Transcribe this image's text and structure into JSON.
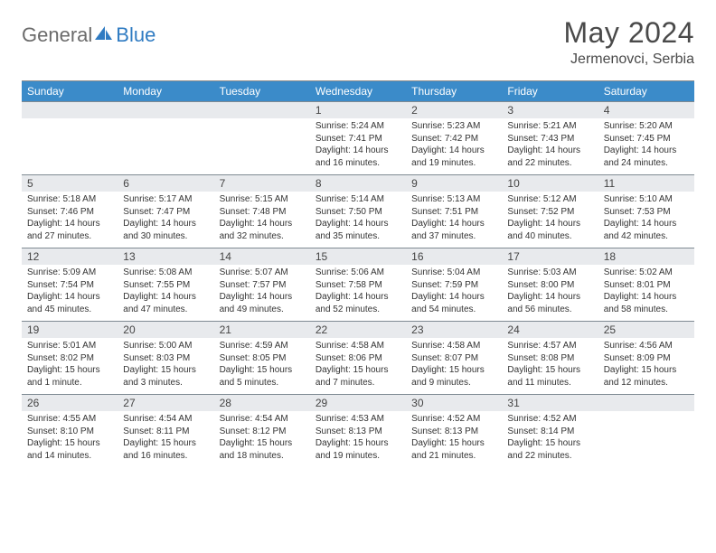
{
  "brand": {
    "part1": "General",
    "part2": "Blue"
  },
  "title": {
    "month": "May 2024",
    "location": "Jermenovci, Serbia"
  },
  "colors": {
    "header_bg": "#3b8bc9",
    "header_text": "#ffffff",
    "daynum_bg": "#e8eaed",
    "rule": "#7f8a93",
    "body_text": "#333333",
    "brand_gray": "#6b6b6b",
    "brand_blue": "#2f7bc2"
  },
  "dow": [
    "Sunday",
    "Monday",
    "Tuesday",
    "Wednesday",
    "Thursday",
    "Friday",
    "Saturday"
  ],
  "weeks": [
    [
      {
        "n": "",
        "lines": [
          "",
          "",
          "",
          ""
        ]
      },
      {
        "n": "",
        "lines": [
          "",
          "",
          "",
          ""
        ]
      },
      {
        "n": "",
        "lines": [
          "",
          "",
          "",
          ""
        ]
      },
      {
        "n": "1",
        "lines": [
          "Sunrise: 5:24 AM",
          "Sunset: 7:41 PM",
          "Daylight: 14 hours",
          "and 16 minutes."
        ]
      },
      {
        "n": "2",
        "lines": [
          "Sunrise: 5:23 AM",
          "Sunset: 7:42 PM",
          "Daylight: 14 hours",
          "and 19 minutes."
        ]
      },
      {
        "n": "3",
        "lines": [
          "Sunrise: 5:21 AM",
          "Sunset: 7:43 PM",
          "Daylight: 14 hours",
          "and 22 minutes."
        ]
      },
      {
        "n": "4",
        "lines": [
          "Sunrise: 5:20 AM",
          "Sunset: 7:45 PM",
          "Daylight: 14 hours",
          "and 24 minutes."
        ]
      }
    ],
    [
      {
        "n": "5",
        "lines": [
          "Sunrise: 5:18 AM",
          "Sunset: 7:46 PM",
          "Daylight: 14 hours",
          "and 27 minutes."
        ]
      },
      {
        "n": "6",
        "lines": [
          "Sunrise: 5:17 AM",
          "Sunset: 7:47 PM",
          "Daylight: 14 hours",
          "and 30 minutes."
        ]
      },
      {
        "n": "7",
        "lines": [
          "Sunrise: 5:15 AM",
          "Sunset: 7:48 PM",
          "Daylight: 14 hours",
          "and 32 minutes."
        ]
      },
      {
        "n": "8",
        "lines": [
          "Sunrise: 5:14 AM",
          "Sunset: 7:50 PM",
          "Daylight: 14 hours",
          "and 35 minutes."
        ]
      },
      {
        "n": "9",
        "lines": [
          "Sunrise: 5:13 AM",
          "Sunset: 7:51 PM",
          "Daylight: 14 hours",
          "and 37 minutes."
        ]
      },
      {
        "n": "10",
        "lines": [
          "Sunrise: 5:12 AM",
          "Sunset: 7:52 PM",
          "Daylight: 14 hours",
          "and 40 minutes."
        ]
      },
      {
        "n": "11",
        "lines": [
          "Sunrise: 5:10 AM",
          "Sunset: 7:53 PM",
          "Daylight: 14 hours",
          "and 42 minutes."
        ]
      }
    ],
    [
      {
        "n": "12",
        "lines": [
          "Sunrise: 5:09 AM",
          "Sunset: 7:54 PM",
          "Daylight: 14 hours",
          "and 45 minutes."
        ]
      },
      {
        "n": "13",
        "lines": [
          "Sunrise: 5:08 AM",
          "Sunset: 7:55 PM",
          "Daylight: 14 hours",
          "and 47 minutes."
        ]
      },
      {
        "n": "14",
        "lines": [
          "Sunrise: 5:07 AM",
          "Sunset: 7:57 PM",
          "Daylight: 14 hours",
          "and 49 minutes."
        ]
      },
      {
        "n": "15",
        "lines": [
          "Sunrise: 5:06 AM",
          "Sunset: 7:58 PM",
          "Daylight: 14 hours",
          "and 52 minutes."
        ]
      },
      {
        "n": "16",
        "lines": [
          "Sunrise: 5:04 AM",
          "Sunset: 7:59 PM",
          "Daylight: 14 hours",
          "and 54 minutes."
        ]
      },
      {
        "n": "17",
        "lines": [
          "Sunrise: 5:03 AM",
          "Sunset: 8:00 PM",
          "Daylight: 14 hours",
          "and 56 minutes."
        ]
      },
      {
        "n": "18",
        "lines": [
          "Sunrise: 5:02 AM",
          "Sunset: 8:01 PM",
          "Daylight: 14 hours",
          "and 58 minutes."
        ]
      }
    ],
    [
      {
        "n": "19",
        "lines": [
          "Sunrise: 5:01 AM",
          "Sunset: 8:02 PM",
          "Daylight: 15 hours",
          "and 1 minute."
        ]
      },
      {
        "n": "20",
        "lines": [
          "Sunrise: 5:00 AM",
          "Sunset: 8:03 PM",
          "Daylight: 15 hours",
          "and 3 minutes."
        ]
      },
      {
        "n": "21",
        "lines": [
          "Sunrise: 4:59 AM",
          "Sunset: 8:05 PM",
          "Daylight: 15 hours",
          "and 5 minutes."
        ]
      },
      {
        "n": "22",
        "lines": [
          "Sunrise: 4:58 AM",
          "Sunset: 8:06 PM",
          "Daylight: 15 hours",
          "and 7 minutes."
        ]
      },
      {
        "n": "23",
        "lines": [
          "Sunrise: 4:58 AM",
          "Sunset: 8:07 PM",
          "Daylight: 15 hours",
          "and 9 minutes."
        ]
      },
      {
        "n": "24",
        "lines": [
          "Sunrise: 4:57 AM",
          "Sunset: 8:08 PM",
          "Daylight: 15 hours",
          "and 11 minutes."
        ]
      },
      {
        "n": "25",
        "lines": [
          "Sunrise: 4:56 AM",
          "Sunset: 8:09 PM",
          "Daylight: 15 hours",
          "and 12 minutes."
        ]
      }
    ],
    [
      {
        "n": "26",
        "lines": [
          "Sunrise: 4:55 AM",
          "Sunset: 8:10 PM",
          "Daylight: 15 hours",
          "and 14 minutes."
        ]
      },
      {
        "n": "27",
        "lines": [
          "Sunrise: 4:54 AM",
          "Sunset: 8:11 PM",
          "Daylight: 15 hours",
          "and 16 minutes."
        ]
      },
      {
        "n": "28",
        "lines": [
          "Sunrise: 4:54 AM",
          "Sunset: 8:12 PM",
          "Daylight: 15 hours",
          "and 18 minutes."
        ]
      },
      {
        "n": "29",
        "lines": [
          "Sunrise: 4:53 AM",
          "Sunset: 8:13 PM",
          "Daylight: 15 hours",
          "and 19 minutes."
        ]
      },
      {
        "n": "30",
        "lines": [
          "Sunrise: 4:52 AM",
          "Sunset: 8:13 PM",
          "Daylight: 15 hours",
          "and 21 minutes."
        ]
      },
      {
        "n": "31",
        "lines": [
          "Sunrise: 4:52 AM",
          "Sunset: 8:14 PM",
          "Daylight: 15 hours",
          "and 22 minutes."
        ]
      },
      {
        "n": "",
        "lines": [
          "",
          "",
          "",
          ""
        ]
      }
    ]
  ]
}
